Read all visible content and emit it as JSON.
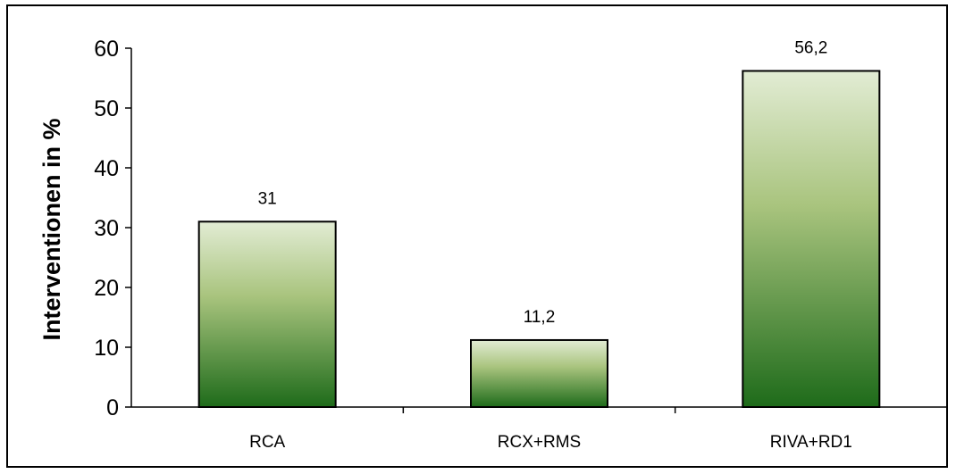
{
  "chart_data": {
    "type": "bar",
    "title": "",
    "xlabel": "",
    "ylabel": "Interventionen in %",
    "categories": [
      "RCA",
      "RCX+RMS",
      "RIVA+RD1"
    ],
    "values": [
      31,
      11.2,
      56.2
    ],
    "value_labels": [
      "31",
      "11,2",
      "56,2"
    ],
    "ylim": [
      0,
      60
    ],
    "yticks": [
      0,
      10,
      20,
      30,
      40,
      50,
      60
    ],
    "grid": false,
    "legend": "none",
    "bar_gradient": [
      "#e2ecd4",
      "#a9c47e",
      "#1e6b1a"
    ]
  }
}
